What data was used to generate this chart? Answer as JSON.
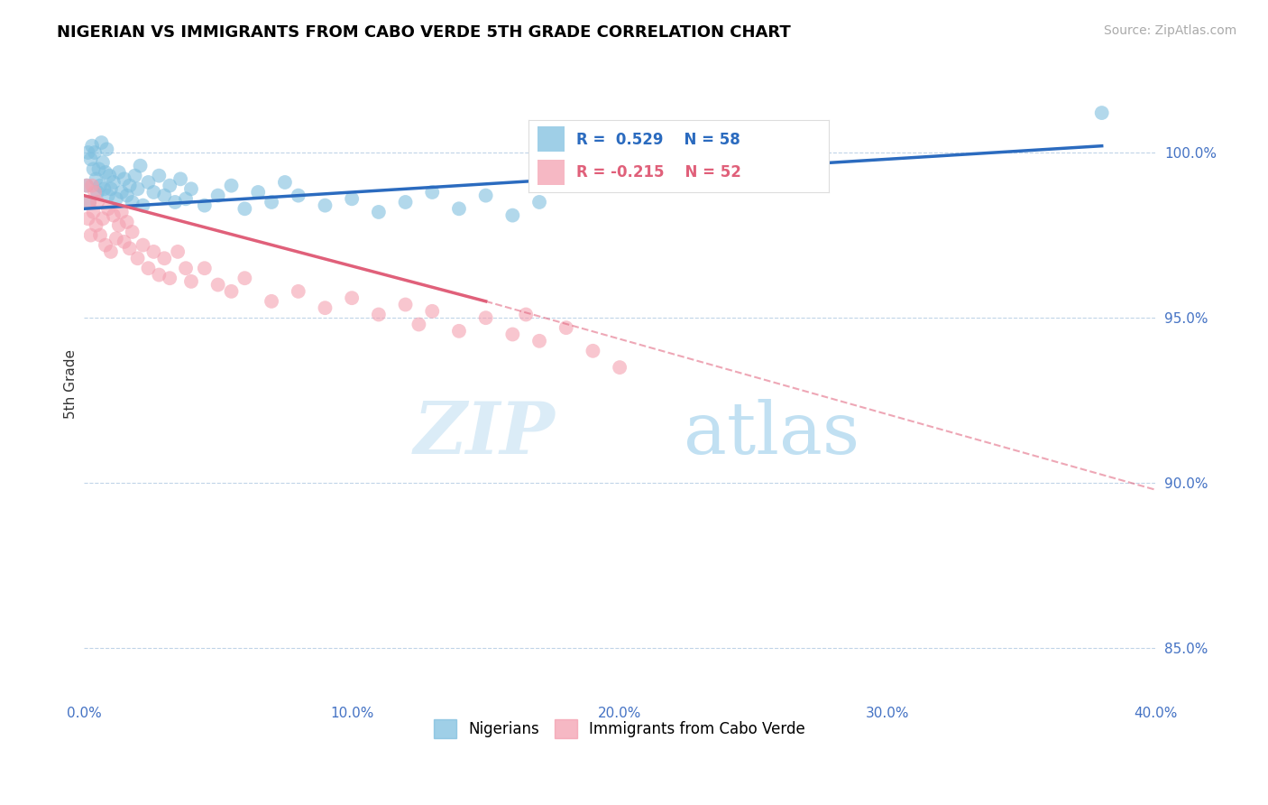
{
  "title": "NIGERIAN VS IMMIGRANTS FROM CABO VERDE 5TH GRADE CORRELATION CHART",
  "source": "Source: ZipAtlas.com",
  "ylabel": "5th Grade",
  "xlabel_vals": [
    0.0,
    10.0,
    20.0,
    30.0,
    40.0
  ],
  "ylabel_vals": [
    85.0,
    90.0,
    95.0,
    100.0
  ],
  "xmin": 0.0,
  "xmax": 40.0,
  "ymin": 83.5,
  "ymax": 102.5,
  "blue_R": 0.529,
  "blue_N": 58,
  "pink_R": -0.215,
  "pink_N": 52,
  "blue_color": "#7fbfdf",
  "pink_color": "#f4a0b0",
  "blue_line_color": "#2b6bbf",
  "pink_line_color": "#e0607a",
  "legend_label_blue": "Nigerians",
  "legend_label_pink": "Immigrants from Cabo Verde",
  "blue_scatter_x": [
    0.1,
    0.15,
    0.2,
    0.25,
    0.3,
    0.35,
    0.4,
    0.45,
    0.5,
    0.55,
    0.6,
    0.65,
    0.7,
    0.75,
    0.8,
    0.85,
    0.9,
    0.95,
    1.0,
    1.1,
    1.2,
    1.3,
    1.4,
    1.5,
    1.6,
    1.7,
    1.8,
    1.9,
    2.0,
    2.1,
    2.2,
    2.4,
    2.6,
    2.8,
    3.0,
    3.2,
    3.4,
    3.6,
    3.8,
    4.0,
    4.5,
    5.0,
    5.5,
    6.0,
    6.5,
    7.0,
    7.5,
    8.0,
    9.0,
    10.0,
    11.0,
    12.0,
    13.0,
    14.0,
    15.0,
    16.0,
    17.0,
    38.0
  ],
  "blue_scatter_y": [
    99.0,
    100.0,
    98.5,
    99.8,
    100.2,
    99.5,
    100.0,
    99.2,
    98.8,
    99.5,
    99.0,
    100.3,
    99.7,
    98.9,
    99.4,
    100.1,
    98.7,
    99.3,
    98.9,
    99.1,
    98.6,
    99.4,
    98.8,
    99.2,
    98.7,
    99.0,
    98.5,
    99.3,
    98.9,
    99.6,
    98.4,
    99.1,
    98.8,
    99.3,
    98.7,
    99.0,
    98.5,
    99.2,
    98.6,
    98.9,
    98.4,
    98.7,
    99.0,
    98.3,
    98.8,
    98.5,
    99.1,
    98.7,
    98.4,
    98.6,
    98.2,
    98.5,
    98.8,
    98.3,
    98.7,
    98.1,
    98.5,
    101.2
  ],
  "pink_scatter_x": [
    0.1,
    0.15,
    0.2,
    0.25,
    0.3,
    0.35,
    0.4,
    0.45,
    0.5,
    0.6,
    0.7,
    0.8,
    0.9,
    1.0,
    1.1,
    1.2,
    1.3,
    1.4,
    1.5,
    1.6,
    1.7,
    1.8,
    2.0,
    2.2,
    2.4,
    2.6,
    2.8,
    3.0,
    3.2,
    3.5,
    3.8,
    4.0,
    4.5,
    5.0,
    5.5,
    6.0,
    7.0,
    8.0,
    9.0,
    10.0,
    11.0,
    12.0,
    12.5,
    13.0,
    14.0,
    15.0,
    16.0,
    16.5,
    17.0,
    18.0,
    19.0,
    20.0
  ],
  "pink_scatter_y": [
    99.0,
    98.0,
    98.5,
    97.5,
    99.0,
    98.2,
    98.8,
    97.8,
    98.5,
    97.5,
    98.0,
    97.2,
    98.3,
    97.0,
    98.1,
    97.4,
    97.8,
    98.2,
    97.3,
    97.9,
    97.1,
    97.6,
    96.8,
    97.2,
    96.5,
    97.0,
    96.3,
    96.8,
    96.2,
    97.0,
    96.5,
    96.1,
    96.5,
    96.0,
    95.8,
    96.2,
    95.5,
    95.8,
    95.3,
    95.6,
    95.1,
    95.4,
    94.8,
    95.2,
    94.6,
    95.0,
    94.5,
    95.1,
    94.3,
    94.7,
    94.0,
    93.5
  ],
  "blue_line_x0": 0.0,
  "blue_line_x1": 38.0,
  "blue_line_y0": 98.3,
  "blue_line_y1": 100.2,
  "pink_solid_x0": 0.0,
  "pink_solid_x1": 15.0,
  "pink_solid_y0": 98.7,
  "pink_solid_y1": 95.5,
  "pink_dash_x0": 15.0,
  "pink_dash_x1": 40.0,
  "pink_dash_y0": 95.5,
  "pink_dash_y1": 89.8
}
